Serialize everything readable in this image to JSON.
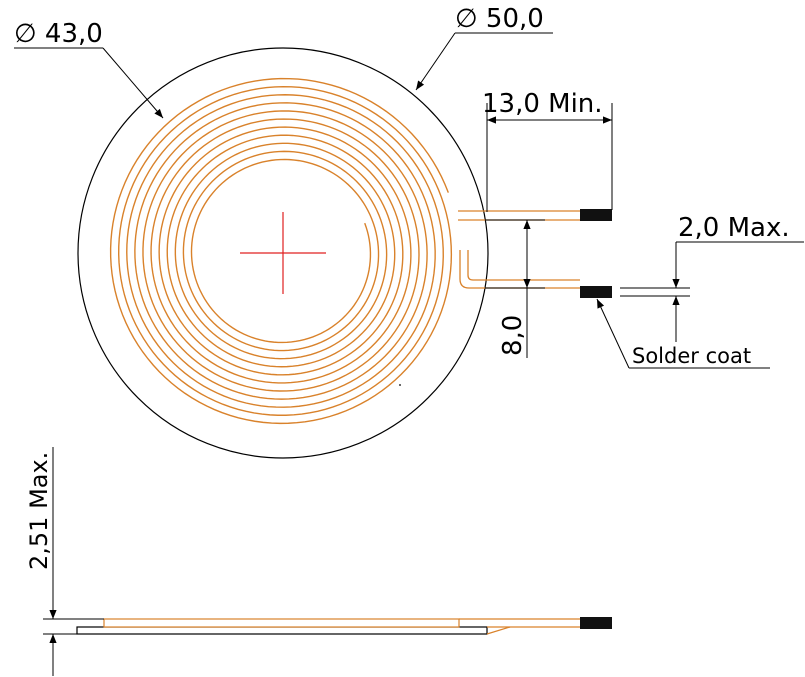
{
  "labels": {
    "inner_diameter": "∅ 43,0",
    "outer_diameter": "∅ 50,0",
    "lead_length": "13,0 Min.",
    "wire_gap": "2,0 Max.",
    "lead_spacing": "8,0",
    "solder_note": "Solder coat",
    "thickness": "2,51 Max."
  },
  "colors": {
    "coil": "#d9822b",
    "center_mark": "#e02020",
    "line": "#000000"
  }
}
